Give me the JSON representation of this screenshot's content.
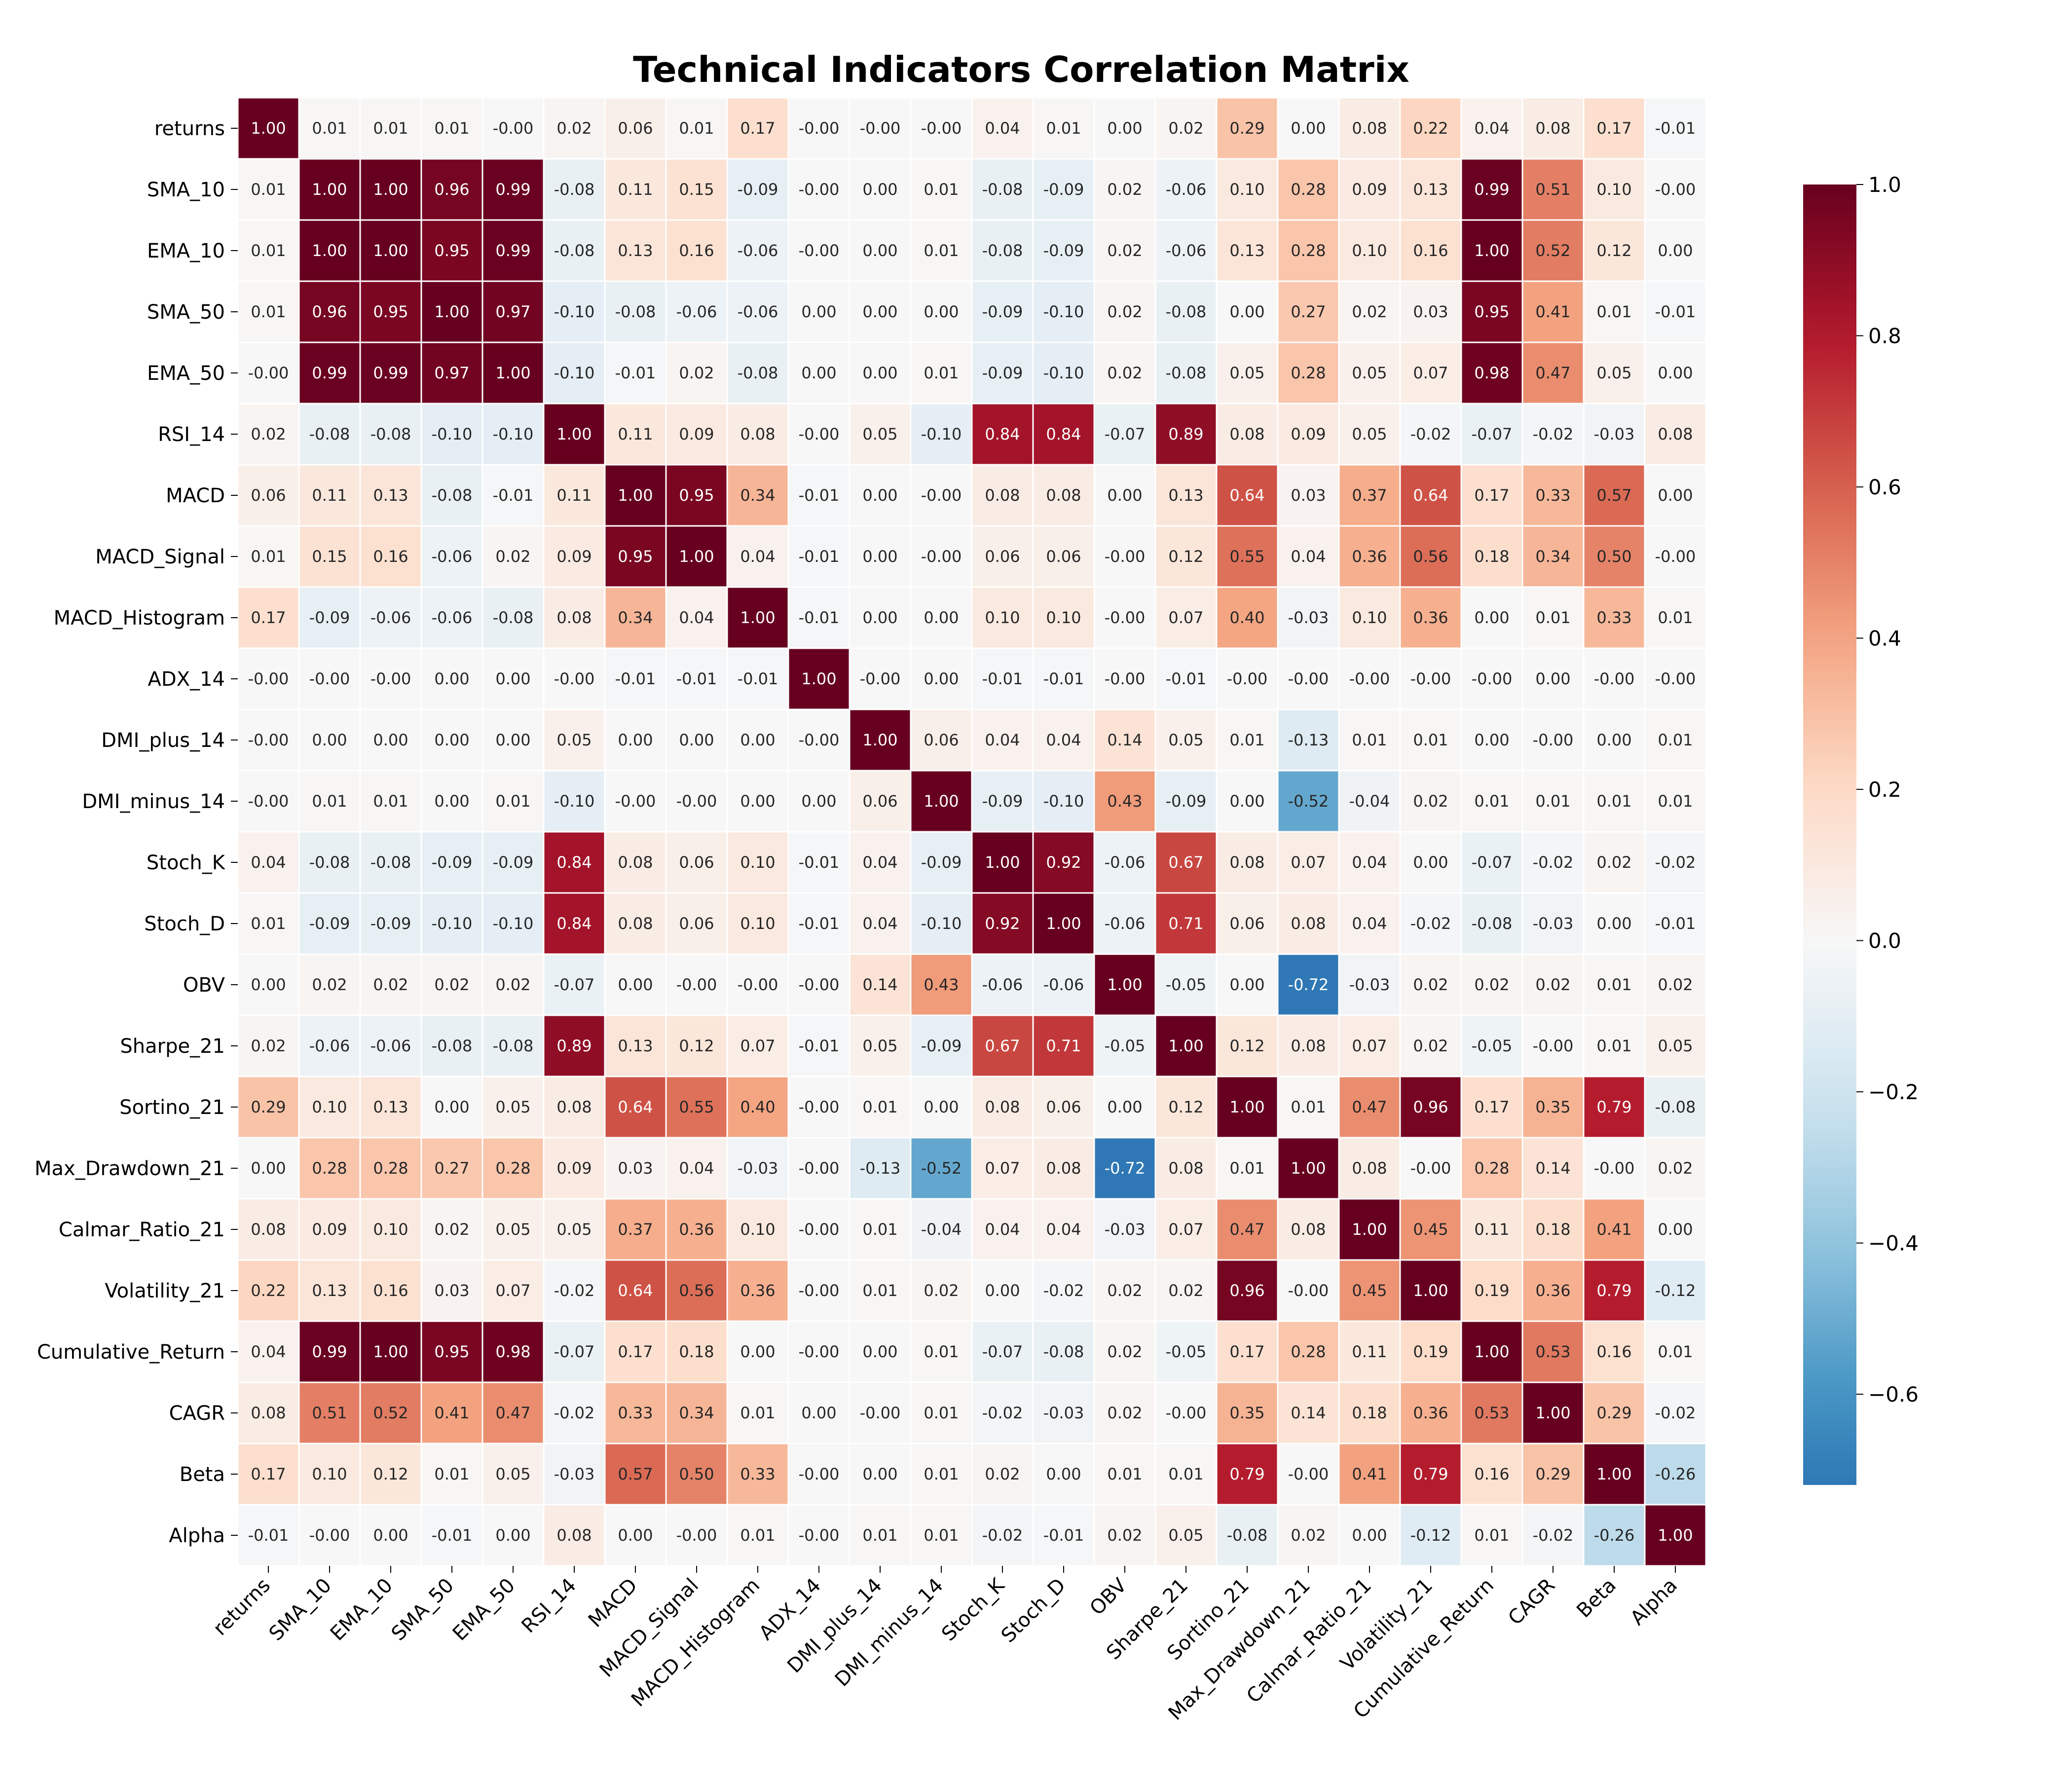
{
  "chart_data": {
    "type": "heatmap",
    "title": "Technical Indicators Correlation Matrix",
    "labels": [
      "returns",
      "SMA_10",
      "EMA_10",
      "SMA_50",
      "EMA_50",
      "RSI_14",
      "MACD",
      "MACD_Signal",
      "MACD_Histogram",
      "ADX_14",
      "DMI_plus_14",
      "DMI_minus_14",
      "Stoch_K",
      "Stoch_D",
      "OBV",
      "Sharpe_21",
      "Sortino_21",
      "Max_Drawdown_21",
      "Calmar_Ratio_21",
      "Volatility_21",
      "Cumulative_Return",
      "CAGR",
      "Beta",
      "Alpha"
    ],
    "values": [
      [
        1.0,
        0.01,
        0.01,
        0.01,
        -0.0,
        0.02,
        0.06,
        0.01,
        0.17,
        -0.0,
        -0.0,
        -0.0,
        0.04,
        0.01,
        0.0,
        0.02,
        0.29,
        0.0,
        0.08,
        0.22,
        0.04,
        0.08,
        0.17,
        -0.01
      ],
      [
        0.01,
        1.0,
        1.0,
        0.96,
        0.99,
        -0.08,
        0.11,
        0.15,
        -0.09,
        -0.0,
        0.0,
        0.01,
        -0.08,
        -0.09,
        0.02,
        -0.06,
        0.1,
        0.28,
        0.09,
        0.13,
        0.99,
        0.51,
        0.1,
        -0.0
      ],
      [
        0.01,
        1.0,
        1.0,
        0.95,
        0.99,
        -0.08,
        0.13,
        0.16,
        -0.06,
        -0.0,
        0.0,
        0.01,
        -0.08,
        -0.09,
        0.02,
        -0.06,
        0.13,
        0.28,
        0.1,
        0.16,
        1.0,
        0.52,
        0.12,
        0.0
      ],
      [
        0.01,
        0.96,
        0.95,
        1.0,
        0.97,
        -0.1,
        -0.08,
        -0.06,
        -0.06,
        0.0,
        0.0,
        0.0,
        -0.09,
        -0.1,
        0.02,
        -0.08,
        0.0,
        0.27,
        0.02,
        0.03,
        0.95,
        0.41,
        0.01,
        -0.01
      ],
      [
        -0.0,
        0.99,
        0.99,
        0.97,
        1.0,
        -0.1,
        -0.01,
        0.02,
        -0.08,
        0.0,
        0.0,
        0.01,
        -0.09,
        -0.1,
        0.02,
        -0.08,
        0.05,
        0.28,
        0.05,
        0.07,
        0.98,
        0.47,
        0.05,
        0.0
      ],
      [
        0.02,
        -0.08,
        -0.08,
        -0.1,
        -0.1,
        1.0,
        0.11,
        0.09,
        0.08,
        -0.0,
        0.05,
        -0.1,
        0.84,
        0.84,
        -0.07,
        0.89,
        0.08,
        0.09,
        0.05,
        -0.02,
        -0.07,
        -0.02,
        -0.03,
        0.08
      ],
      [
        0.06,
        0.11,
        0.13,
        -0.08,
        -0.01,
        0.11,
        1.0,
        0.95,
        0.34,
        -0.01,
        0.0,
        -0.0,
        0.08,
        0.08,
        0.0,
        0.13,
        0.64,
        0.03,
        0.37,
        0.64,
        0.17,
        0.33,
        0.57,
        0.0
      ],
      [
        0.01,
        0.15,
        0.16,
        -0.06,
        0.02,
        0.09,
        0.95,
        1.0,
        0.04,
        -0.01,
        0.0,
        -0.0,
        0.06,
        0.06,
        -0.0,
        0.12,
        0.55,
        0.04,
        0.36,
        0.56,
        0.18,
        0.34,
        0.5,
        -0.0
      ],
      [
        0.17,
        -0.09,
        -0.06,
        -0.06,
        -0.08,
        0.08,
        0.34,
        0.04,
        1.0,
        -0.01,
        0.0,
        0.0,
        0.1,
        0.1,
        -0.0,
        0.07,
        0.4,
        -0.03,
        0.1,
        0.36,
        0.0,
        0.01,
        0.33,
        0.01
      ],
      [
        -0.0,
        -0.0,
        -0.0,
        0.0,
        0.0,
        -0.0,
        -0.01,
        -0.01,
        -0.01,
        1.0,
        -0.0,
        0.0,
        -0.01,
        -0.01,
        -0.0,
        -0.01,
        -0.0,
        -0.0,
        -0.0,
        -0.0,
        -0.0,
        0.0,
        -0.0,
        -0.0
      ],
      [
        -0.0,
        0.0,
        0.0,
        0.0,
        0.0,
        0.05,
        0.0,
        0.0,
        0.0,
        -0.0,
        1.0,
        0.06,
        0.04,
        0.04,
        0.14,
        0.05,
        0.01,
        -0.13,
        0.01,
        0.01,
        0.0,
        -0.0,
        0.0,
        0.01
      ],
      [
        -0.0,
        0.01,
        0.01,
        0.0,
        0.01,
        -0.1,
        -0.0,
        -0.0,
        0.0,
        0.0,
        0.06,
        1.0,
        -0.09,
        -0.1,
        0.43,
        -0.09,
        0.0,
        -0.52,
        -0.04,
        0.02,
        0.01,
        0.01,
        0.01,
        0.01
      ],
      [
        0.04,
        -0.08,
        -0.08,
        -0.09,
        -0.09,
        0.84,
        0.08,
        0.06,
        0.1,
        -0.01,
        0.04,
        -0.09,
        1.0,
        0.92,
        -0.06,
        0.67,
        0.08,
        0.07,
        0.04,
        0.0,
        -0.07,
        -0.02,
        0.02,
        -0.02
      ],
      [
        0.01,
        -0.09,
        -0.09,
        -0.1,
        -0.1,
        0.84,
        0.08,
        0.06,
        0.1,
        -0.01,
        0.04,
        -0.1,
        0.92,
        1.0,
        -0.06,
        0.71,
        0.06,
        0.08,
        0.04,
        -0.02,
        -0.08,
        -0.03,
        0.0,
        -0.01
      ],
      [
        0.0,
        0.02,
        0.02,
        0.02,
        0.02,
        -0.07,
        0.0,
        -0.0,
        -0.0,
        -0.0,
        0.14,
        0.43,
        -0.06,
        -0.06,
        1.0,
        -0.05,
        0.0,
        -0.72,
        -0.03,
        0.02,
        0.02,
        0.02,
        0.01,
        0.02
      ],
      [
        0.02,
        -0.06,
        -0.06,
        -0.08,
        -0.08,
        0.89,
        0.13,
        0.12,
        0.07,
        -0.01,
        0.05,
        -0.09,
        0.67,
        0.71,
        -0.05,
        1.0,
        0.12,
        0.08,
        0.07,
        0.02,
        -0.05,
        -0.0,
        0.01,
        0.05
      ],
      [
        0.29,
        0.1,
        0.13,
        0.0,
        0.05,
        0.08,
        0.64,
        0.55,
        0.4,
        -0.0,
        0.01,
        0.0,
        0.08,
        0.06,
        0.0,
        0.12,
        1.0,
        0.01,
        0.47,
        0.96,
        0.17,
        0.35,
        0.79,
        -0.08
      ],
      [
        0.0,
        0.28,
        0.28,
        0.27,
        0.28,
        0.09,
        0.03,
        0.04,
        -0.03,
        -0.0,
        -0.13,
        -0.52,
        0.07,
        0.08,
        -0.72,
        0.08,
        0.01,
        1.0,
        0.08,
        -0.0,
        0.28,
        0.14,
        -0.0,
        0.02
      ],
      [
        0.08,
        0.09,
        0.1,
        0.02,
        0.05,
        0.05,
        0.37,
        0.36,
        0.1,
        -0.0,
        0.01,
        -0.04,
        0.04,
        0.04,
        -0.03,
        0.07,
        0.47,
        0.08,
        1.0,
        0.45,
        0.11,
        0.18,
        0.41,
        0.0
      ],
      [
        0.22,
        0.13,
        0.16,
        0.03,
        0.07,
        -0.02,
        0.64,
        0.56,
        0.36,
        -0.0,
        0.01,
        0.02,
        0.0,
        -0.02,
        0.02,
        0.02,
        0.96,
        -0.0,
        0.45,
        1.0,
        0.19,
        0.36,
        0.79,
        -0.12
      ],
      [
        0.04,
        0.99,
        1.0,
        0.95,
        0.98,
        -0.07,
        0.17,
        0.18,
        0.0,
        -0.0,
        0.0,
        0.01,
        -0.07,
        -0.08,
        0.02,
        -0.05,
        0.17,
        0.28,
        0.11,
        0.19,
        1.0,
        0.53,
        0.16,
        0.01
      ],
      [
        0.08,
        0.51,
        0.52,
        0.41,
        0.47,
        -0.02,
        0.33,
        0.34,
        0.01,
        0.0,
        -0.0,
        0.01,
        -0.02,
        -0.03,
        0.02,
        -0.0,
        0.35,
        0.14,
        0.18,
        0.36,
        0.53,
        1.0,
        0.29,
        -0.02
      ],
      [
        0.17,
        0.1,
        0.12,
        0.01,
        0.05,
        -0.03,
        0.57,
        0.5,
        0.33,
        -0.0,
        0.0,
        0.01,
        0.02,
        0.0,
        0.01,
        0.01,
        0.79,
        -0.0,
        0.41,
        0.79,
        0.16,
        0.29,
        1.0,
        -0.26
      ],
      [
        -0.01,
        -0.0,
        0.0,
        -0.01,
        0.0,
        0.08,
        0.0,
        -0.0,
        0.01,
        -0.0,
        0.01,
        0.01,
        -0.02,
        -0.01,
        0.02,
        0.05,
        -0.08,
        0.02,
        0.0,
        -0.12,
        0.01,
        -0.02,
        -0.26,
        1.0
      ]
    ],
    "value_format": "0.00",
    "colormap": "RdBu_r",
    "vmin": -0.72,
    "vmax": 1.0,
    "colorbar": {
      "ticks": [
        1.0,
        0.8,
        0.6,
        0.4,
        0.2,
        0.0,
        -0.2,
        -0.4,
        -0.6
      ],
      "tick_labels": [
        "1.0",
        "0.8",
        "0.6",
        "0.4",
        "0.2",
        "0.0",
        "−0.2",
        "−0.4",
        "−0.6"
      ]
    },
    "colormap_stops": [
      "#053061",
      "#2166ac",
      "#4393c3",
      "#92c5de",
      "#d1e5f0",
      "#f7f7f7",
      "#fddbc7",
      "#f4a582",
      "#d6604d",
      "#b2182b",
      "#67001f"
    ],
    "cell_border_color": "#ffffff",
    "grid": false,
    "legend": "colorbar-right"
  }
}
